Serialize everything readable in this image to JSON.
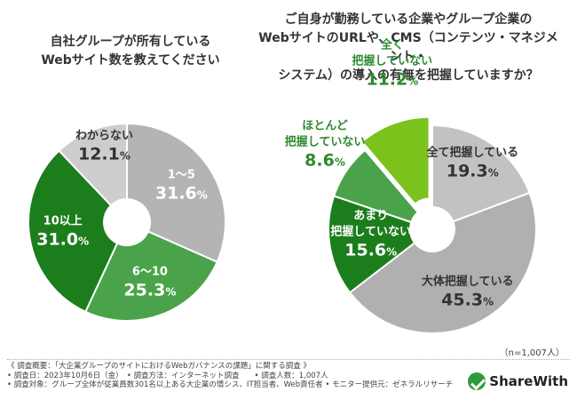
{
  "chart_data": [
    {
      "type": "pie",
      "style": "donut",
      "title": [
        "自社グループが所有している",
        "Webサイト数を教えてください"
      ],
      "unit": "%",
      "categories": [
        "1～5",
        "6～10",
        "10以上",
        "わからない"
      ],
      "values": [
        31.6,
        25.3,
        31.0,
        12.1
      ],
      "value_labels": [
        "31.6",
        "25.3",
        "31.0",
        "12.1"
      ],
      "colors": [
        "#b4b4b4",
        "#4aa34a",
        "#1c7d1c",
        "#cdcdcd"
      ]
    },
    {
      "type": "pie",
      "style": "donut",
      "title": [
        "ご自身が勤務している企業やグループ企業の",
        "WebサイトのURLや、CMS（コンテンツ・マネジメント・",
        "システム）の導入の有無を把握していますか？"
      ],
      "unit": "%",
      "categories": [
        "全て把握している",
        "大体把握している",
        "あまり把握していない",
        "ほとんど把握していない",
        "全く把握していない"
      ],
      "label_lines": [
        [
          "全て把握している"
        ],
        [
          "大体把握している"
        ],
        [
          "あまり",
          "把握していない"
        ],
        [
          "ほとんど",
          "把握していない"
        ],
        [
          "全く",
          "把握していない"
        ]
      ],
      "values": [
        19.3,
        45.3,
        15.6,
        8.6,
        11.2
      ],
      "value_labels": [
        "19.3",
        "45.3",
        "15.6",
        "8.6",
        "11.2"
      ],
      "colors": [
        "#c2c2c2",
        "#b0b0b0",
        "#1c7d1c",
        "#4aa34a",
        "#7cc21d"
      ],
      "exploded": [
        false,
        false,
        false,
        false,
        true
      ],
      "n_label": "（n=1,007人）"
    }
  ],
  "footnotes": [
    "《 調査概要：「大企業グループのサイトにおけるWebガバナンスの課題」に関する調査 》",
    "• 調査日：2023年10月6日（金）　• 調査方法：インターネット調査　　• 調査人数：1,007人",
    "• 調査対象：グループ全体が従業員数301名以上ある大企業の情シス、IT担当者、Web責任者 • モニター提供元：ゼネラルリサーチ"
  ],
  "logo": {
    "name": "ShareWith",
    "color": "#2e9b3b"
  }
}
